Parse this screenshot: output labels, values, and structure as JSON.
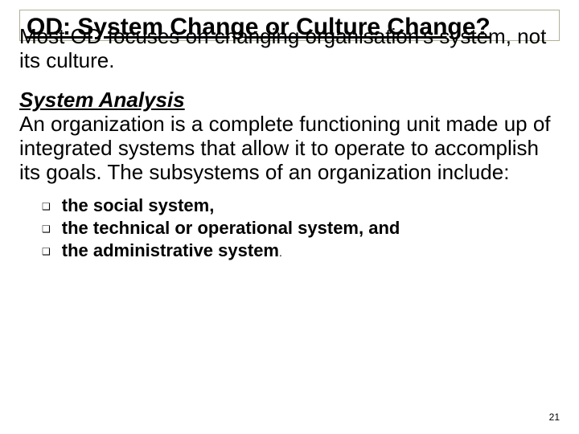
{
  "title": "OD: System Change or Culture Change?",
  "intro": "Most OD focuses on changing organisation's system, not its culture.",
  "subheading": "System Analysis",
  "paragraph": "An organization is a complete functioning unit made up of integrated systems that allow it to operate to accomplish its goals. The subsystems of an organization include:",
  "bullets": [
    "the social system,",
    "the technical or operational system, and",
    "the administrative system"
  ],
  "pageNumber": "21",
  "colors": {
    "text": "#000000",
    "border": "#b0b098",
    "background": "#ffffff"
  },
  "fonts": {
    "title_size": 30,
    "body_size": 26,
    "bullet_size": 22,
    "pagenum_size": 12
  }
}
